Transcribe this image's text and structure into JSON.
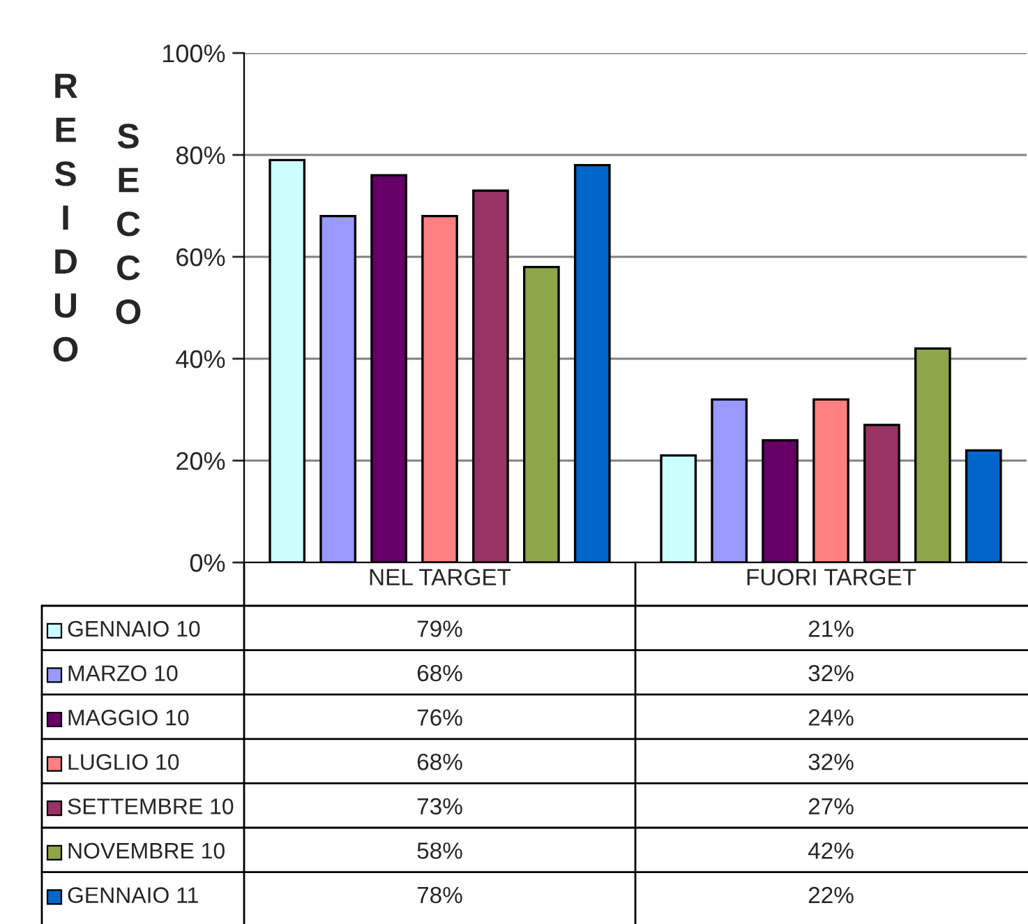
{
  "chart_data": {
    "type": "bar",
    "ylabel": "RESIDUO SECCO",
    "categories": [
      "NEL TARGET",
      "FUORI TARGET"
    ],
    "ylim": [
      0,
      100
    ],
    "yticks": [
      {
        "value": 0,
        "label": "0%"
      },
      {
        "value": 20,
        "label": "20%"
      },
      {
        "value": 40,
        "label": "40%"
      },
      {
        "value": 60,
        "label": "60%"
      },
      {
        "value": 80,
        "label": "80%"
      },
      {
        "value": 100,
        "label": "100%"
      }
    ],
    "grid": "y",
    "legend": "bottom",
    "series": [
      {
        "name": "GENNAIO 10",
        "color": "#ccffff",
        "values": [
          79,
          21
        ],
        "value_labels": [
          "79%",
          "21%"
        ]
      },
      {
        "name": "MARZO 10",
        "color": "#9999ff",
        "values": [
          68,
          32
        ],
        "value_labels": [
          "68%",
          "32%"
        ]
      },
      {
        "name": "MAGGIO 10",
        "color": "#660066",
        "values": [
          76,
          24
        ],
        "value_labels": [
          "76%",
          "24%"
        ]
      },
      {
        "name": "LUGLIO 10",
        "color": "#ff8080",
        "values": [
          68,
          32
        ],
        "value_labels": [
          "68%",
          "32%"
        ]
      },
      {
        "name": "SETTEMBRE 10",
        "color": "#993366",
        "values": [
          73,
          27
        ],
        "value_labels": [
          "73%",
          "27%"
        ]
      },
      {
        "name": "NOVEMBRE 10",
        "color": "#8ea64a",
        "values": [
          58,
          42
        ],
        "value_labels": [
          "58%",
          "42%"
        ]
      },
      {
        "name": "GENNAIO 11",
        "color": "#0066cc",
        "values": [
          78,
          22
        ],
        "value_labels": [
          "78%",
          "22%"
        ]
      }
    ]
  }
}
